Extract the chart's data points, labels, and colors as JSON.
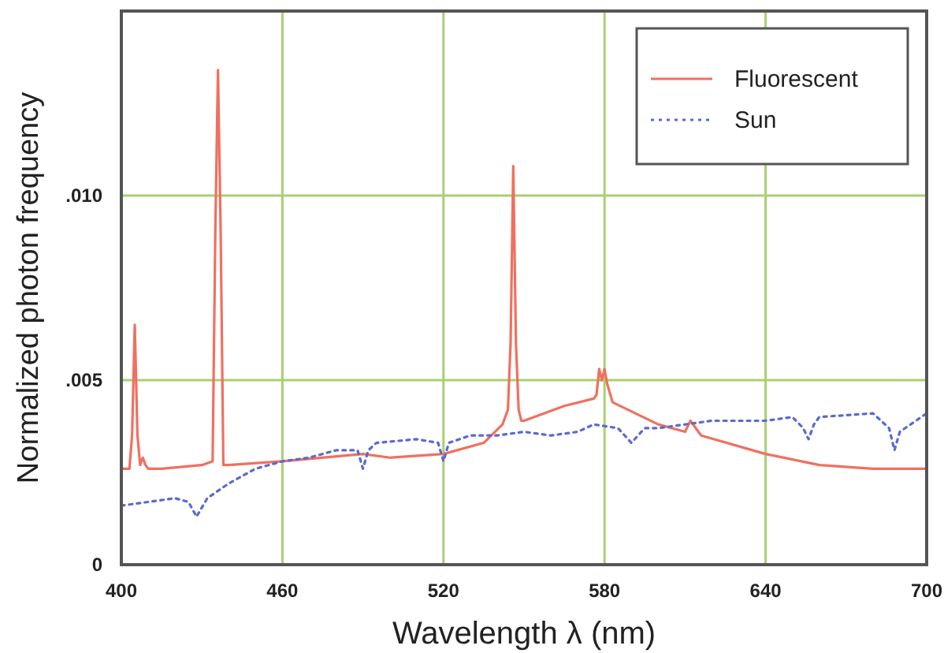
{
  "chart_data": {
    "type": "line",
    "xlabel": "Wavelength λ (nm)",
    "ylabel": "Normalized photon frequency",
    "xlim": [
      400,
      700
    ],
    "xticks": [
      400,
      460,
      520,
      580,
      640,
      700
    ],
    "ylim": [
      0,
      0.015
    ],
    "yticks": [
      0,
      {
        "value": 0.005,
        "label": ".005"
      },
      {
        "value": 0.01,
        "label": ".010"
      }
    ],
    "grid": true,
    "legend": "top right",
    "series": [
      {
        "name": "Fluorescent",
        "color": "#f07060",
        "line_style": "solid",
        "x": [
          400,
          403,
          404,
          405,
          406,
          407,
          408,
          409,
          410,
          415,
          430,
          434,
          435,
          436,
          437,
          438,
          440,
          460,
          490,
          500,
          520,
          535,
          542,
          544,
          545,
          546,
          547,
          548,
          549,
          550,
          565,
          576,
          577,
          578,
          579,
          580,
          581,
          583,
          600,
          610,
          612,
          616,
          640,
          660,
          680,
          700
        ],
        "values": [
          0.0026,
          0.0026,
          0.0035,
          0.0065,
          0.0035,
          0.0027,
          0.0029,
          0.0027,
          0.0026,
          0.0026,
          0.0027,
          0.0028,
          0.009,
          0.0134,
          0.009,
          0.0027,
          0.0027,
          0.0028,
          0.003,
          0.0029,
          0.003,
          0.0033,
          0.0038,
          0.0042,
          0.006,
          0.0108,
          0.006,
          0.0042,
          0.0039,
          0.0039,
          0.0043,
          0.0045,
          0.0046,
          0.0053,
          0.005,
          0.0053,
          0.0049,
          0.0044,
          0.0038,
          0.0036,
          0.0039,
          0.0035,
          0.003,
          0.0027,
          0.0026,
          0.0026
        ]
      },
      {
        "name": "Sun",
        "color": "#5a6ad0",
        "line_style": "dotted",
        "x": [
          400,
          410,
          420,
          425,
          428,
          432,
          440,
          450,
          460,
          470,
          480,
          488,
          490,
          492,
          495,
          510,
          518,
          520,
          522,
          530,
          540,
          550,
          560,
          570,
          576,
          585,
          590,
          595,
          600,
          620,
          640,
          650,
          654,
          656,
          658,
          660,
          680,
          686,
          688,
          690,
          700
        ],
        "values": [
          0.0016,
          0.0017,
          0.0018,
          0.0017,
          0.0013,
          0.0018,
          0.0022,
          0.0026,
          0.0028,
          0.0029,
          0.0031,
          0.0031,
          0.0026,
          0.0031,
          0.0033,
          0.0034,
          0.0033,
          0.0028,
          0.0033,
          0.0035,
          0.0035,
          0.0036,
          0.0035,
          0.0036,
          0.0038,
          0.0037,
          0.0033,
          0.0037,
          0.0037,
          0.0039,
          0.0039,
          0.004,
          0.0037,
          0.0034,
          0.0038,
          0.004,
          0.0041,
          0.0037,
          0.0031,
          0.0036,
          0.0041
        ]
      }
    ]
  }
}
